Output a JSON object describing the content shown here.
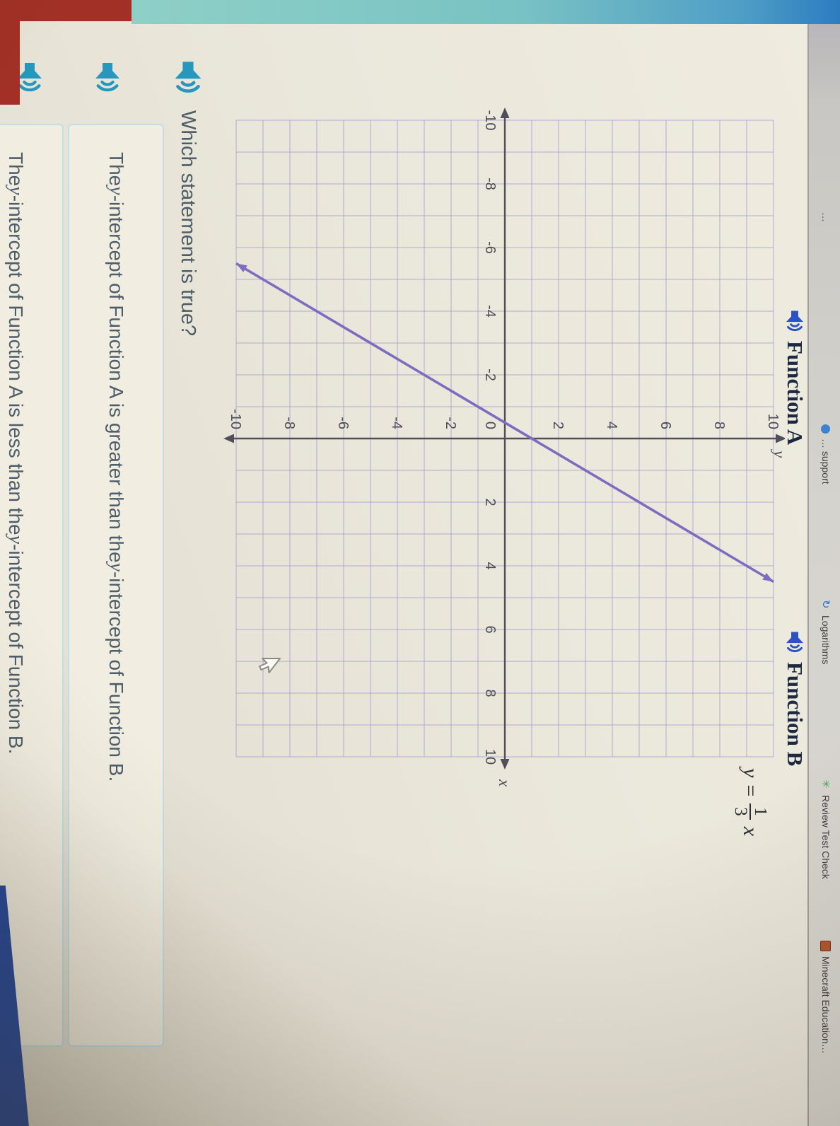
{
  "header": {
    "bookmarks": [
      {
        "label": "…",
        "icon": "none"
      },
      {
        "label": "… support",
        "icon": "dot-blue"
      },
      {
        "label": "Logarithms",
        "icon": "refresh"
      },
      {
        "label": "Review Test Check",
        "icon": "sparkle"
      },
      {
        "label": "Minecraft Education…",
        "icon": "square"
      }
    ]
  },
  "panels": {
    "function_a": {
      "title": "Function A"
    },
    "function_b": {
      "title": "Function B",
      "equation": {
        "lhs": "y",
        "rel": "=",
        "numerator": "1",
        "denominator": "3",
        "rhs": "x",
        "text": "y = (1/3)x"
      }
    }
  },
  "question": {
    "text": "Which statement is true?"
  },
  "options": [
    {
      "parts": [
        {
          "text": "The "
        },
        {
          "text": "y",
          "italic": true
        },
        {
          "text": "-intercept of Function A is greater than the "
        },
        {
          "text": "y",
          "italic": true
        },
        {
          "text": "-intercept of Function B."
        }
      ]
    },
    {
      "parts": [
        {
          "text": "The "
        },
        {
          "text": "y",
          "italic": true
        },
        {
          "text": "-intercept of Function A is less than the "
        },
        {
          "text": "y",
          "italic": true
        },
        {
          "text": "-intercept of Function B."
        }
      ]
    }
  ],
  "colors": {
    "line": "#7d6cc0",
    "grid": "#a29cd1",
    "axis": "#4f4e59",
    "tick_text": "#4c4c58",
    "speaker_teal": "#2697bd",
    "speaker_blue": "#2b52c4",
    "option_border": "#c2dfe3",
    "stripe_teal": "#8ed0c6",
    "stripe_blue": "#2d7cc0",
    "corner_red": "#a23026",
    "wedge_navy": "#20459c"
  },
  "chart_data": {
    "type": "line",
    "title": "Function A",
    "xlabel": "x",
    "ylabel": "y",
    "xlim": [
      -10,
      10
    ],
    "ylim": [
      -10,
      10
    ],
    "grid_step": 1,
    "tick_step": 2,
    "x_ticks": [
      -10,
      -8,
      -6,
      -4,
      -2,
      0,
      2,
      4,
      6,
      8,
      10
    ],
    "y_ticks": [
      -10,
      -8,
      -6,
      -4,
      -2,
      0,
      2,
      4,
      6,
      8,
      10
    ],
    "grid": "on",
    "series": [
      {
        "name": "Function A",
        "equation": "y = 2x + 1",
        "slope": 2,
        "y_intercept": 1,
        "x_intercept": -0.5,
        "segment": {
          "from": [
            -5.5,
            -10
          ],
          "to": [
            4.5,
            10
          ]
        },
        "arrows": "both"
      }
    ]
  }
}
